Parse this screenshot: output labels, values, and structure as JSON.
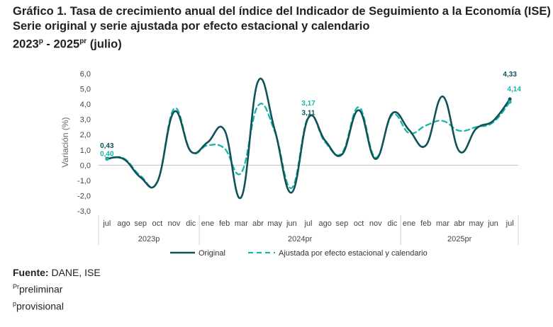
{
  "title": {
    "line1": "Gráfico 1. Tasa de crecimiento anual del índice del Indicador de Seguimiento a la Economía (ISE)",
    "line2": "Serie original y serie ajustada por efecto estacional y calendario",
    "line3_start": "2023",
    "line3_start_sup": "p",
    "line3_dash": " - 2025",
    "line3_end_sup": "pr",
    "line3_end": " (julio)"
  },
  "chart_data": {
    "type": "line",
    "ylabel": "Variación (%)",
    "ylim": [
      -3.0,
      6.0
    ],
    "yticks": [
      "6,0",
      "5,0",
      "4,0",
      "3,0",
      "2,0",
      "1,0",
      "0,0",
      "-1,0",
      "-2,0",
      "-3,0"
    ],
    "categories": [
      "jul",
      "ago",
      "sep",
      "oct",
      "nov",
      "dic",
      "ene",
      "feb",
      "mar",
      "abr",
      "may",
      "jun",
      "jul",
      "ago",
      "sep",
      "oct",
      "nov",
      "dic",
      "ene",
      "feb",
      "mar",
      "abr",
      "may",
      "jun",
      "jul"
    ],
    "year_groups": [
      {
        "label": "2023p",
        "start": 0,
        "end": 5
      },
      {
        "label": "2024pr",
        "start": 6,
        "end": 17
      },
      {
        "label": "2025pr",
        "start": 18,
        "end": 24
      }
    ],
    "series": [
      {
        "name": "Original",
        "color": "#0f5257",
        "dash": "solid",
        "values": [
          0.43,
          0.4,
          -0.8,
          -1.1,
          3.5,
          0.9,
          1.5,
          2.3,
          -2.1,
          5.5,
          2.3,
          -1.8,
          3.11,
          1.6,
          0.7,
          3.6,
          0.4,
          3.4,
          2.3,
          1.3,
          4.5,
          0.9,
          2.4,
          2.9,
          4.33
        ]
      },
      {
        "name": "Ajustada por efecto estacional y calendario",
        "color": "#17b6a6",
        "dash": "dashed",
        "values": [
          0.4,
          0.45,
          -0.7,
          -1.1,
          3.7,
          0.9,
          1.3,
          1.1,
          -0.5,
          3.9,
          2.2,
          -1.5,
          3.17,
          1.5,
          0.8,
          3.8,
          0.5,
          3.3,
          2.1,
          2.6,
          2.9,
          2.25,
          2.5,
          2.8,
          4.14
        ]
      }
    ],
    "data_labels": [
      {
        "index": 0,
        "series": 0,
        "text": "0,43"
      },
      {
        "index": 0,
        "series": 1,
        "text": "0,40"
      },
      {
        "index": 12,
        "series": 1,
        "text": "3,17"
      },
      {
        "index": 12,
        "series": 0,
        "text": "3,11"
      },
      {
        "index": 24,
        "series": 0,
        "text": "4,33"
      },
      {
        "index": 24,
        "series": 1,
        "text": "4,14"
      }
    ],
    "grid": false,
    "legend_position": "bottom"
  },
  "notes": {
    "source_label": "Fuente:",
    "source_value": " DANE, ISE",
    "note1_sup": "Pr",
    "note1_text": "preliminar",
    "note2_sup": "p",
    "note2_text": "provisional"
  }
}
